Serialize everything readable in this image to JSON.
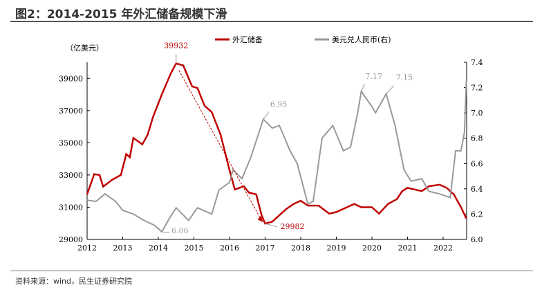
{
  "title": "图2：2014-2015 年外汇储备规模下滑",
  "source": "资料来源：wind，民生证券研究院",
  "chart_data": {
    "type": "line",
    "ylabel": "（亿美元）",
    "x_ticks": [
      "2012",
      "2013",
      "2014",
      "2015",
      "2016",
      "2017",
      "2018",
      "2019",
      "2020",
      "2021",
      "2022"
    ],
    "xlim": [
      2012,
      2022.65
    ],
    "ylim": [
      29000,
      40000
    ],
    "y_ticks": [
      29000,
      31000,
      33000,
      35000,
      37000,
      39000
    ],
    "y2lim": [
      6.0,
      7.4
    ],
    "y2_ticks": [
      "6.0",
      "6.2",
      "6.4",
      "6.6",
      "6.8",
      "7.0",
      "7.2",
      "7.4"
    ],
    "legend_position": "top",
    "series": [
      {
        "name": "外汇储备",
        "axis": "left",
        "color": "#c00000",
        "x": [
          2012.0,
          2012.2,
          2012.35,
          2012.45,
          2012.7,
          2012.95,
          2013.1,
          2013.2,
          2013.3,
          2013.55,
          2013.7,
          2013.85,
          2014.1,
          2014.35,
          2014.5,
          2014.7,
          2014.95,
          2015.1,
          2015.3,
          2015.5,
          2015.75,
          2016.0,
          2016.15,
          2016.4,
          2016.55,
          2016.75,
          2016.9,
          2017.0,
          2017.2,
          2017.4,
          2017.6,
          2017.8,
          2018.0,
          2018.2,
          2018.5,
          2018.8,
          2019.0,
          2019.3,
          2019.5,
          2019.7,
          2020.0,
          2020.2,
          2020.45,
          2020.7,
          2020.85,
          2021.0,
          2021.4,
          2021.6,
          2021.9,
          2022.1,
          2022.3,
          2022.5,
          2022.65
        ],
        "values": [
          31800,
          33050,
          33000,
          32280,
          32700,
          33000,
          34300,
          34100,
          35300,
          34900,
          35500,
          36600,
          38000,
          39300,
          39932,
          39800,
          38500,
          38400,
          37300,
          36900,
          35500,
          33300,
          32100,
          32300,
          31900,
          31800,
          30500,
          29982,
          30100,
          30500,
          30900,
          31200,
          31400,
          31100,
          31100,
          30600,
          30700,
          31000,
          31200,
          31000,
          31000,
          30600,
          31200,
          31500,
          32000,
          32200,
          32000,
          32300,
          32400,
          32200,
          31800,
          31000,
          30300
        ]
      },
      {
        "name": "美元兑人民币(右)",
        "axis": "right",
        "color": "#999999",
        "x": [
          2012.0,
          2012.25,
          2012.5,
          2012.8,
          2013.0,
          2013.3,
          2013.6,
          2013.9,
          2014.1,
          2014.3,
          2014.5,
          2014.85,
          2015.1,
          2015.5,
          2015.7,
          2016.0,
          2016.1,
          2016.35,
          2016.6,
          2016.95,
          2017.2,
          2017.4,
          2017.7,
          2017.9,
          2018.2,
          2018.35,
          2018.6,
          2018.9,
          2019.2,
          2019.4,
          2019.6,
          2019.7,
          2020.0,
          2020.1,
          2020.4,
          2020.65,
          2020.9,
          2021.1,
          2021.4,
          2021.6,
          2021.9,
          2022.2,
          2022.35,
          2022.5,
          2022.6,
          2022.65
        ],
        "values": [
          6.31,
          6.3,
          6.36,
          6.3,
          6.23,
          6.2,
          6.15,
          6.11,
          6.06,
          6.16,
          6.25,
          6.15,
          6.25,
          6.2,
          6.39,
          6.45,
          6.55,
          6.48,
          6.65,
          6.95,
          6.88,
          6.9,
          6.7,
          6.6,
          6.28,
          6.3,
          6.8,
          6.9,
          6.7,
          6.73,
          7.0,
          7.17,
          7.05,
          7.0,
          7.15,
          6.9,
          6.55,
          6.46,
          6.48,
          6.38,
          6.36,
          6.33,
          6.7,
          6.7,
          6.85,
          7.25
        ]
      }
    ],
    "annotations": [
      {
        "text": "39932",
        "series": 0,
        "x": 2014.5,
        "color": "#c00000"
      },
      {
        "text": "29982",
        "series": 0,
        "x": 2017.0,
        "color": "#c00000"
      },
      {
        "text": "6.06",
        "series": 1,
        "x": 2014.1,
        "color": "#999999"
      },
      {
        "text": "6.95",
        "series": 1,
        "x": 2016.95,
        "color": "#999999"
      },
      {
        "text": "7.17",
        "series": 1,
        "x": 2019.7,
        "color": "#999999"
      },
      {
        "text": "7.15",
        "series": 1,
        "x": 2020.4,
        "color": "#999999"
      }
    ]
  }
}
